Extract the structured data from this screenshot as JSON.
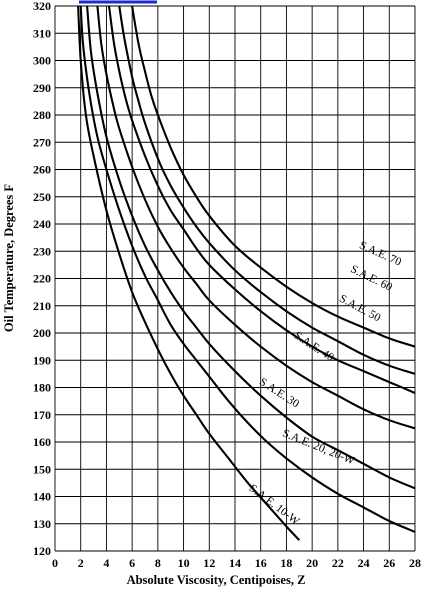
{
  "chart_data": {
    "type": "line",
    "xlabel": "Absolute Viscosity, Centipoises, Z",
    "ylabel": "Oil Temperature, Degrees F",
    "xlim": [
      0,
      28
    ],
    "ylim": [
      120,
      320
    ],
    "x_ticks": [
      0,
      2,
      4,
      6,
      8,
      10,
      12,
      14,
      16,
      18,
      20,
      22,
      24,
      26,
      28
    ],
    "y_ticks": [
      120,
      130,
      140,
      150,
      160,
      170,
      180,
      190,
      200,
      210,
      220,
      230,
      240,
      250,
      260,
      270,
      280,
      290,
      300,
      310,
      320
    ],
    "grid": true,
    "legend": "inline labels",
    "accent_color": "#1a2bd6",
    "series": [
      {
        "name": "S.A.E. 10-W",
        "x": [
          1.8,
          2.0,
          2.4,
          3.0,
          4.0,
          5.0,
          6.0,
          7.0,
          8.0,
          9.0,
          10.0,
          11.0,
          12.0,
          13.5,
          15.0,
          16.5,
          18.0,
          19.0
        ],
        "y": [
          320,
          300,
          280,
          265,
          245,
          229,
          215,
          204,
          194,
          185,
          177,
          170,
          163,
          154,
          145,
          137,
          129,
          124
        ]
      },
      {
        "name": "S.A.E. 20, 20-W",
        "x": [
          2.0,
          2.2,
          2.7,
          3.3,
          4.0,
          5.0,
          6.0,
          7.0,
          8.0,
          9.0,
          10.0,
          11.0,
          12.0,
          13.5,
          15.0,
          16.5,
          18.0,
          20.0,
          22.0,
          24.0,
          26.0,
          28.0
        ],
        "y": [
          320,
          305,
          287,
          272,
          260,
          245,
          232,
          221,
          212,
          203,
          196,
          190,
          184,
          175,
          167,
          160,
          154,
          147,
          141,
          136,
          131,
          127
        ]
      },
      {
        "name": "S.A.E. 30",
        "x": [
          2.5,
          2.8,
          3.3,
          4.0,
          5.0,
          6.0,
          7.0,
          8.0,
          9.0,
          10.0,
          11.0,
          12.0,
          14.0,
          16.0,
          18.0,
          20.0,
          22.0,
          24.0,
          26.0,
          28.0
        ],
        "y": [
          320,
          303,
          288,
          272,
          256,
          243,
          232,
          223,
          215,
          208,
          202,
          196,
          186,
          177,
          169,
          162,
          157,
          152,
          147,
          143
        ]
      },
      {
        "name": "S.A.E. 40",
        "x": [
          3.3,
          3.6,
          4.0,
          4.5,
          5.0,
          6.0,
          7.0,
          8.0,
          9.0,
          10.0,
          11.0,
          12.0,
          14.0,
          16.0,
          18.0,
          20.0,
          22.0,
          24.0,
          26.0,
          28.0
        ],
        "y": [
          320,
          306,
          295,
          284,
          275,
          261,
          249,
          239,
          231,
          224,
          218,
          212,
          203,
          195,
          188,
          182,
          177,
          172,
          168,
          165
        ]
      },
      {
        "name": "S.A.E. 50",
        "x": [
          4.2,
          4.6,
          5.0,
          5.5,
          6.0,
          7.0,
          8.0,
          9.0,
          10.0,
          11.0,
          12.0,
          14.0,
          16.0,
          18.0,
          20.0,
          22.0,
          24.0,
          26.0,
          28.0
        ],
        "y": [
          320,
          306,
          296,
          286,
          278,
          265,
          254,
          245,
          238,
          231,
          225,
          216,
          208,
          201,
          195,
          190,
          186,
          182,
          178
        ]
      },
      {
        "name": "S.A.E. 60",
        "x": [
          5.0,
          5.4,
          6.0,
          6.5,
          7.0,
          8.0,
          9.0,
          10.0,
          11.0,
          12.0,
          14.0,
          16.0,
          18.0,
          20.0,
          22.0,
          24.0,
          26.0,
          28.0
        ],
        "y": [
          320,
          308,
          294,
          285,
          277,
          264,
          254,
          246,
          239,
          233,
          223,
          215,
          208,
          202,
          197,
          192,
          188,
          185
        ]
      },
      {
        "name": "S.A.E. 70",
        "x": [
          6.0,
          6.5,
          7.0,
          7.5,
          8.0,
          9.0,
          10.0,
          11.0,
          12.0,
          14.0,
          16.0,
          18.0,
          20.0,
          22.0,
          24.0,
          26.0,
          28.0
        ],
        "y": [
          320,
          306,
          296,
          287,
          280,
          268,
          258,
          250,
          243,
          232,
          224,
          217,
          211,
          206,
          202,
          198,
          195
        ]
      }
    ],
    "labels": [
      {
        "series": "S.A.E. 10-W",
        "text": "S.A.E. 10-W",
        "x": 16.9,
        "y": 136,
        "angle": 37
      },
      {
        "series": "S.A.E. 20, 20-W",
        "text": "S.A.E. 20, 20-W",
        "x": 20.4,
        "y": 157,
        "angle": 22
      },
      {
        "series": "S.A.E. 30",
        "text": "S.A.E. 30",
        "x": 17.3,
        "y": 177,
        "angle": 33
      },
      {
        "series": "S.A.E. 40",
        "text": "S.A.E. 40",
        "x": 20.0,
        "y": 194,
        "angle": 33
      },
      {
        "series": "S.A.E. 50",
        "text": "S.A.E. 50",
        "x": 23.6,
        "y": 208,
        "angle": 28
      },
      {
        "series": "S.A.E. 60",
        "text": "S.A.E. 60",
        "x": 24.5,
        "y": 219,
        "angle": 26
      },
      {
        "series": "S.A.E. 70",
        "text": "S.A.E. 70",
        "x": 25.2,
        "y": 228,
        "angle": 24
      }
    ]
  }
}
